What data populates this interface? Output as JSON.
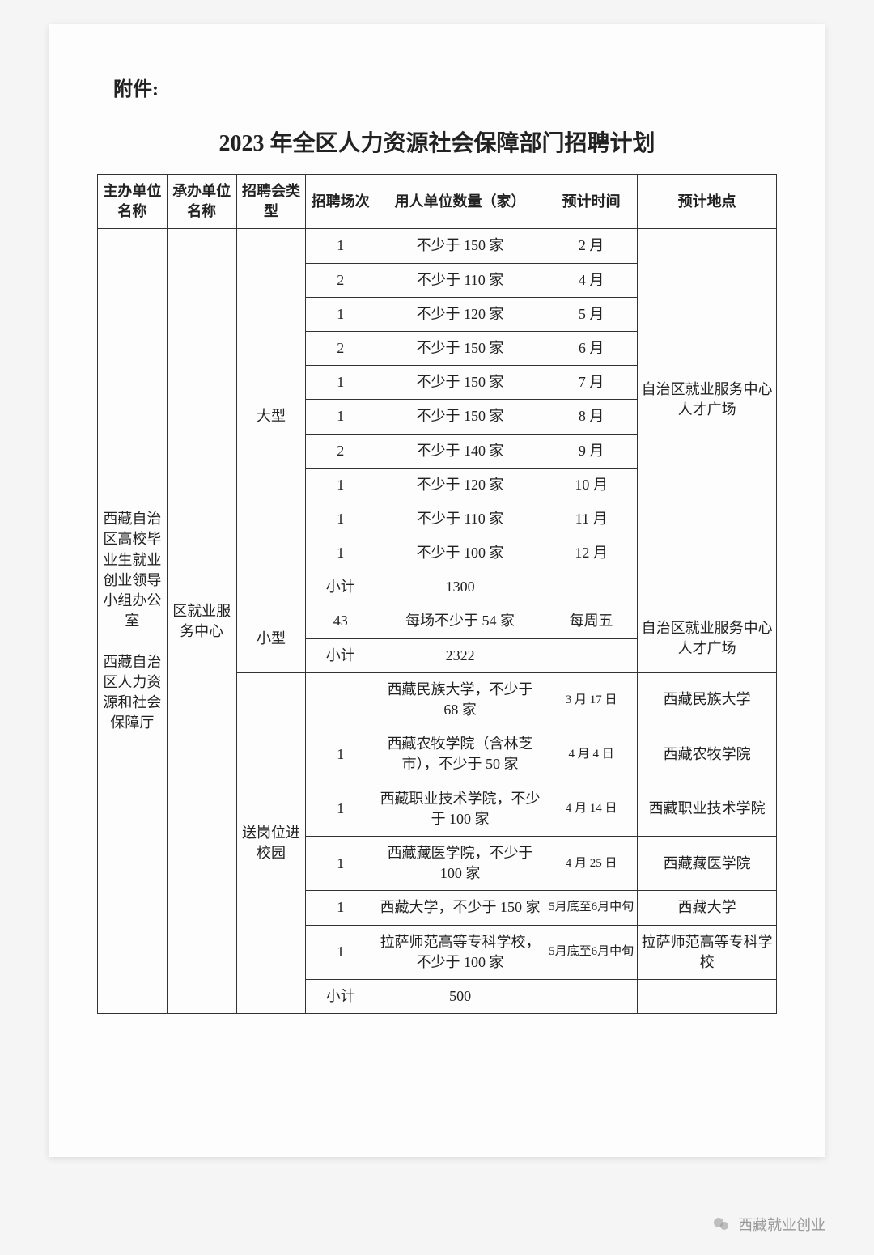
{
  "attachment_label": "附件:",
  "title": "2023 年全区人力资源社会保障部门招聘计划",
  "headers": {
    "host": "主办单位名称",
    "undertake": "承办单位名称",
    "type": "招聘会类型",
    "count": "招聘场次",
    "employer": "用人单位数量（家）",
    "time": "预计时间",
    "location": "预计地点"
  },
  "host_org": "西藏自治区高校毕业生就业创业领导小组办公室\n\n西藏自治区人力资源和社会保障厅",
  "undertake_org": "区就业服务中心",
  "type_large": "大型",
  "type_small": "小型",
  "type_campus": "送岗位进校园",
  "subtotal_label": "小计",
  "large_rows": [
    {
      "count": "1",
      "employer": "不少于 150 家",
      "time": "2 月"
    },
    {
      "count": "2",
      "employer": "不少于 110 家",
      "time": "4 月"
    },
    {
      "count": "1",
      "employer": "不少于 120 家",
      "time": "5 月"
    },
    {
      "count": "2",
      "employer": "不少于 150 家",
      "time": "6 月"
    },
    {
      "count": "1",
      "employer": "不少于 150 家",
      "time": "7 月"
    },
    {
      "count": "1",
      "employer": "不少于 150 家",
      "time": "8 月"
    },
    {
      "count": "2",
      "employer": "不少于 140 家",
      "time": "9 月"
    },
    {
      "count": "1",
      "employer": "不少于 120 家",
      "time": "10 月"
    },
    {
      "count": "1",
      "employer": "不少于 110 家",
      "time": "11 月"
    },
    {
      "count": "1",
      "employer": "不少于 100 家",
      "time": "12 月"
    }
  ],
  "large_location": "自治区就业服务中心人才广场",
  "large_subtotal": "1300",
  "small_row": {
    "count": "43",
    "employer": "每场不少于 54 家",
    "time": "每周五"
  },
  "small_location": "自治区就业服务中心人才广场",
  "small_subtotal": "2322",
  "campus_rows": [
    {
      "count": "",
      "employer": "西藏民族大学，不少于 68 家",
      "time": "3 月 17 日",
      "location": "西藏民族大学"
    },
    {
      "count": "1",
      "employer": "西藏农牧学院（含林芝市），不少于 50 家",
      "time": "4 月 4 日",
      "location": "西藏农牧学院"
    },
    {
      "count": "1",
      "employer": "西藏职业技术学院，不少于 100 家",
      "time": "4 月 14 日",
      "location": "西藏职业技术学院"
    },
    {
      "count": "1",
      "employer": "西藏藏医学院，不少于 100 家",
      "time": "4 月 25 日",
      "location": "西藏藏医学院"
    },
    {
      "count": "1",
      "employer": "西藏大学，不少于 150 家",
      "time": "5月底至6月中旬",
      "location": "西藏大学"
    },
    {
      "count": "1",
      "employer": "拉萨师范高等专科学校，不少于 100 家",
      "time": "5月底至6月中旬",
      "location": "拉萨师范高等专科学校"
    }
  ],
  "campus_subtotal": "500",
  "watermark": "西藏就业创业",
  "styling": {
    "page_bg": "#fdfdfd",
    "body_bg": "#f5f5f5",
    "text_color": "#222",
    "border_color": "#333",
    "title_fontsize": 28,
    "header_fontsize": 18,
    "cell_fontsize": 18,
    "small_fontsize": 15
  }
}
